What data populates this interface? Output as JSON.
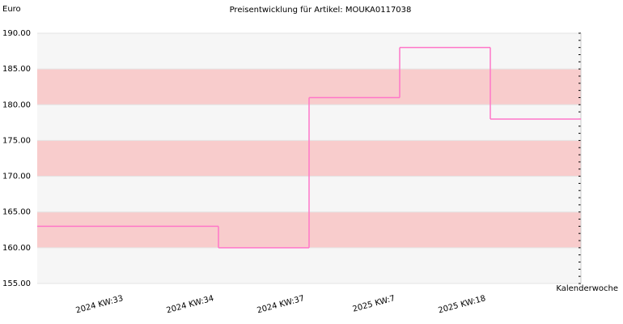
{
  "chart_data": {
    "type": "step",
    "title": "Preisentwicklung für Artikel: MOUKA0117038",
    "y_label": "Euro",
    "x_label": "Kalenderwoche",
    "categories": [
      "2024 KW:33",
      "2024 KW:34",
      "2024 KW:37",
      "2025 KW:7",
      "2025 KW:18"
    ],
    "values": [
      163,
      160,
      181,
      188,
      178
    ],
    "color": "#ff77c8",
    "ylim": [
      155,
      190
    ],
    "yticks": [
      {
        "value": 155,
        "label": "155.00"
      },
      {
        "value": 160,
        "label": "160.00"
      },
      {
        "value": 165,
        "label": "165.00"
      },
      {
        "value": 170,
        "label": "170.00"
      },
      {
        "value": 175,
        "label": "175.00"
      },
      {
        "value": 180,
        "label": "180.00"
      },
      {
        "value": 185,
        "label": "185.00"
      },
      {
        "value": 190,
        "label": "190.00"
      }
    ],
    "grid": true
  }
}
